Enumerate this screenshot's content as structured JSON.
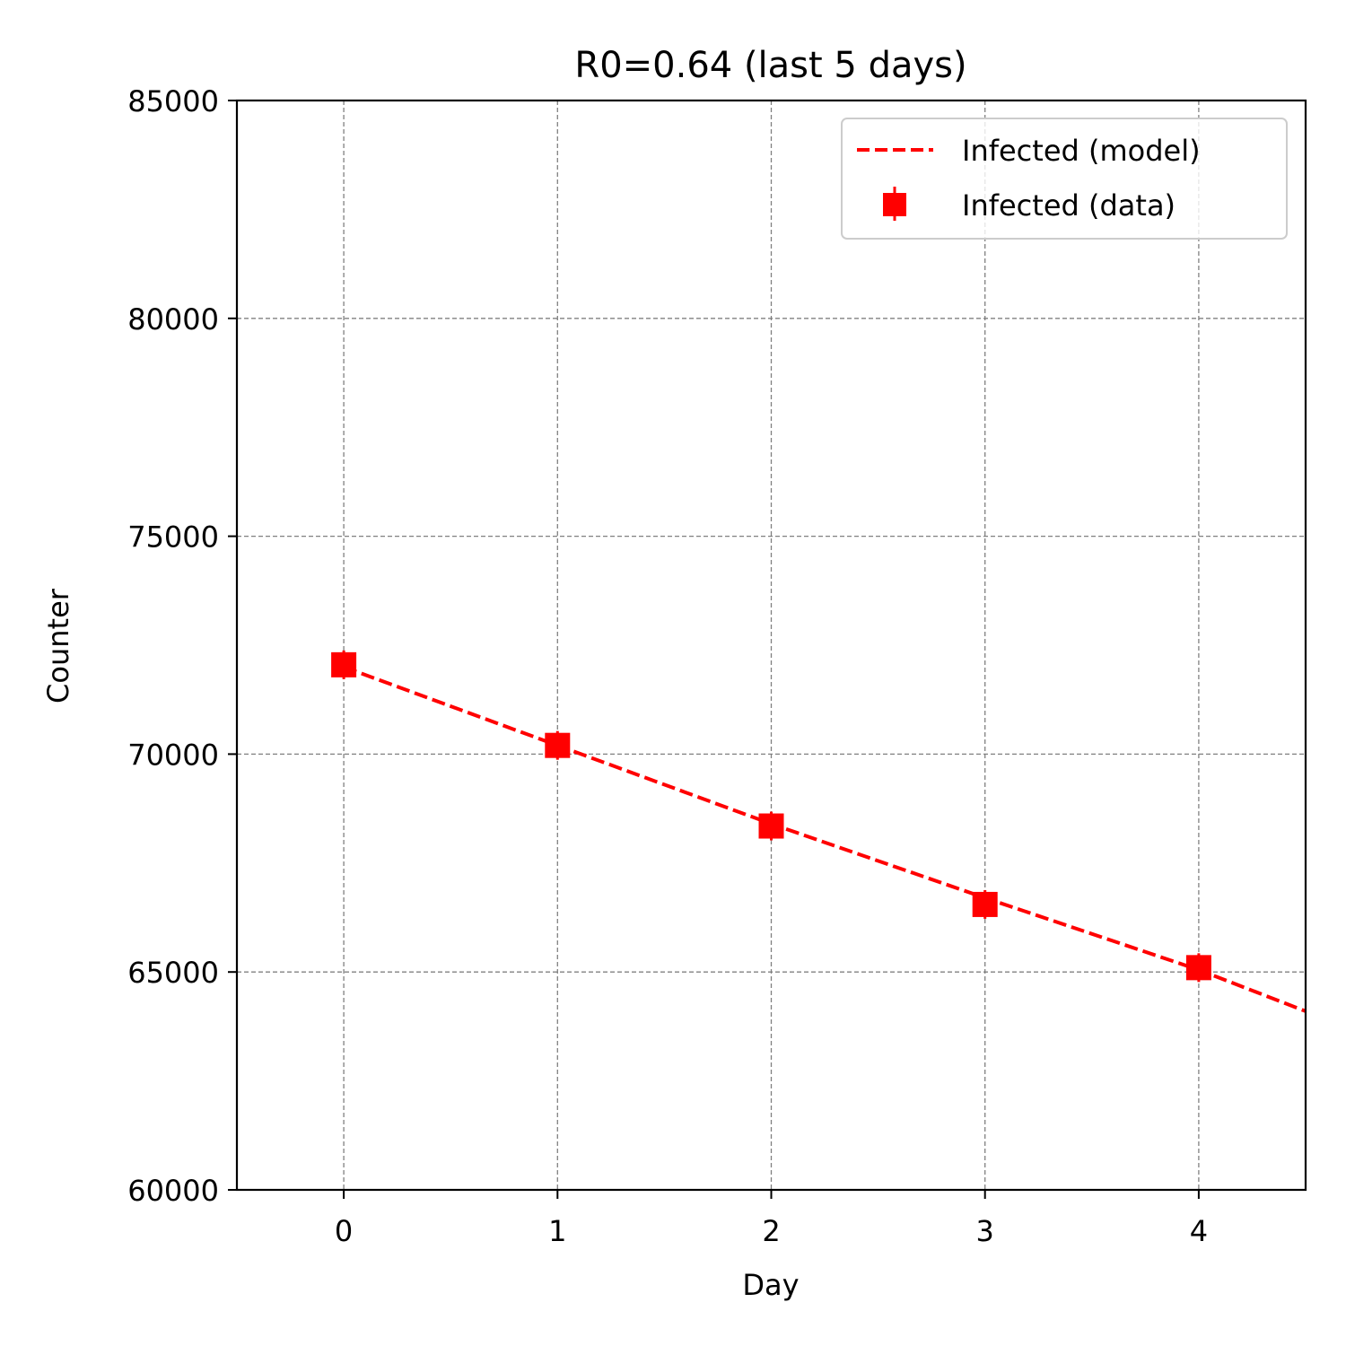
{
  "chart_data": {
    "type": "line",
    "title": "R0=0.64 (last 5 days)",
    "xlabel": "Day",
    "ylabel": "Counter",
    "xlim": [
      -0.5,
      4.5
    ],
    "ylim": [
      60000,
      85000
    ],
    "x_ticks": [
      0,
      1,
      2,
      3,
      4
    ],
    "x_tick_labels": [
      "0",
      "1",
      "2",
      "3",
      "4"
    ],
    "y_ticks": [
      60000,
      65000,
      70000,
      75000,
      80000,
      85000
    ],
    "y_tick_labels": [
      "60000",
      "65000",
      "70000",
      "75000",
      "80000",
      "85000"
    ],
    "grid": true,
    "legend_position": "top-right",
    "series": [
      {
        "name": "Infected (model)",
        "style": "dashed-line",
        "color": "#ff0000",
        "x": [
          0,
          1,
          2,
          3,
          4,
          4.5
        ],
        "y": [
          72000,
          70200,
          68400,
          66700,
          65050,
          64100
        ]
      },
      {
        "name": "Infected (data)",
        "style": "square-markers-with-error-bars",
        "color": "#ff0000",
        "x": [
          0,
          1,
          2,
          3,
          4
        ],
        "y": [
          72050,
          70200,
          68350,
          66550,
          65100
        ]
      }
    ]
  }
}
